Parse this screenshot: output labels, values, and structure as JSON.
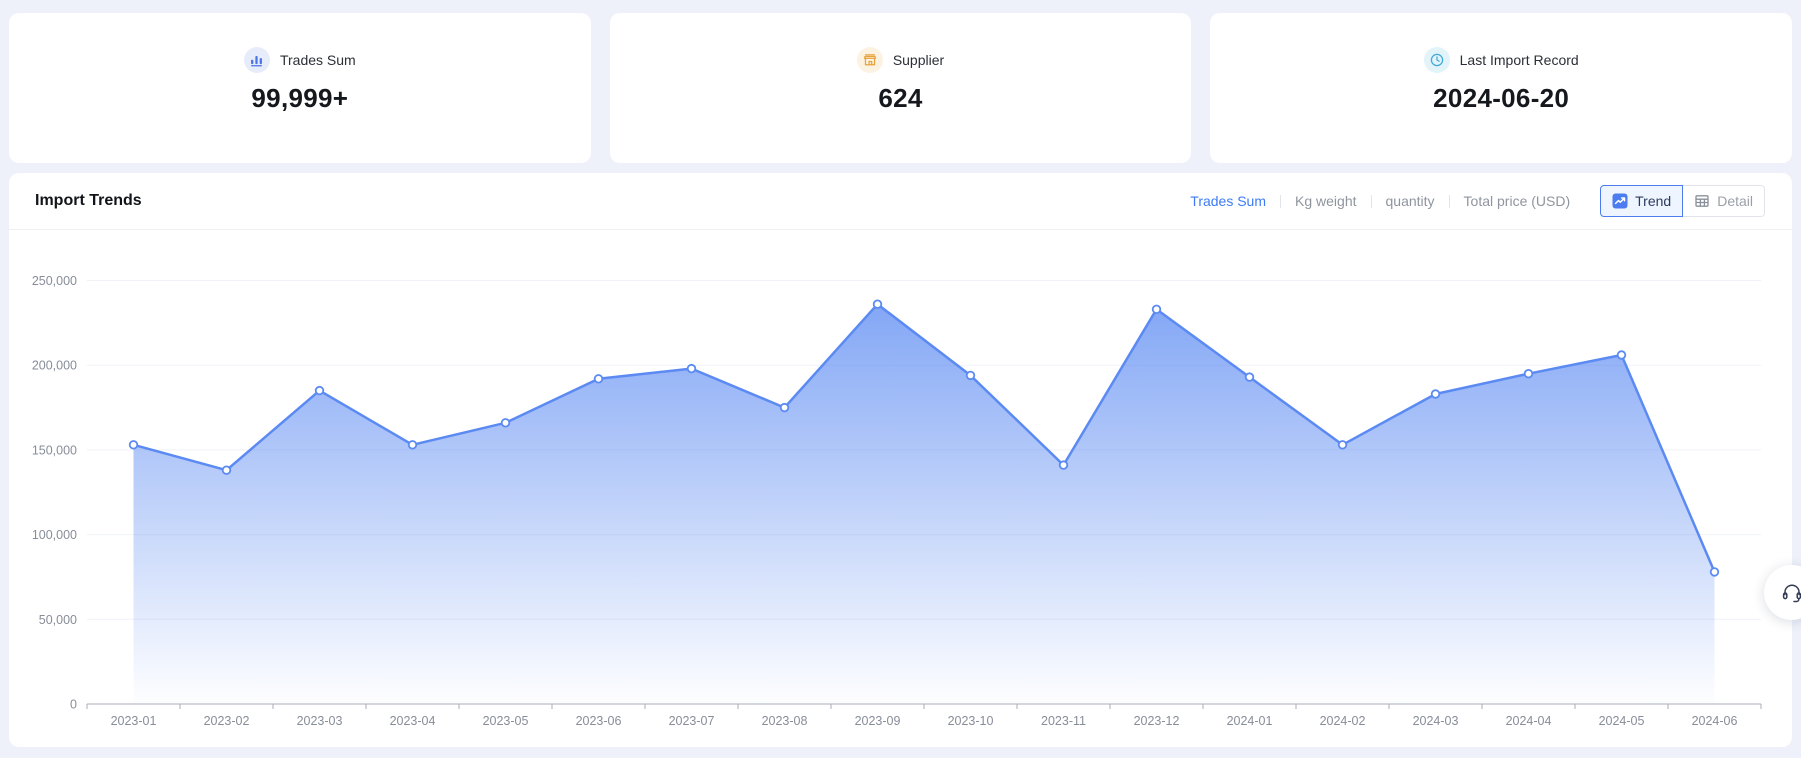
{
  "stats": [
    {
      "label": "Trades Sum",
      "value": "99,999+",
      "icon": "bar-chart-icon",
      "icon_color": "#4a72e8",
      "icon_bg": "#e7ecfb"
    },
    {
      "label": "Supplier",
      "value": "624",
      "icon": "storefront-icon",
      "icon_color": "#e8a23d",
      "icon_bg": "#fcf2e1"
    },
    {
      "label": "Last Import Record",
      "value": "2024-06-20",
      "icon": "clock-icon",
      "icon_color": "#3fa9da",
      "icon_bg": "#e2f3fa"
    }
  ],
  "trends": {
    "title": "Import Trends",
    "metric_tabs": [
      {
        "label": "Trades Sum",
        "active": true
      },
      {
        "label": "Kg weight",
        "active": false
      },
      {
        "label": "quantity",
        "active": false
      },
      {
        "label": "Total price (USD)",
        "active": false
      }
    ],
    "view_toggle": [
      {
        "label": "Trend",
        "active": true,
        "icon": "trend-icon"
      },
      {
        "label": "Detail",
        "active": false,
        "icon": "table-icon"
      }
    ],
    "accent_color": "#3d7bf7"
  },
  "chart_data": {
    "type": "area",
    "title": "Import Trends - Trades Sum",
    "x": [
      "2023-01",
      "2023-02",
      "2023-03",
      "2023-04",
      "2023-05",
      "2023-06",
      "2023-07",
      "2023-08",
      "2023-09",
      "2023-10",
      "2023-11",
      "2023-12",
      "2024-01",
      "2024-02",
      "2024-03",
      "2024-04",
      "2024-05",
      "2024-06"
    ],
    "series": [
      {
        "name": "Trades Sum",
        "values": [
          153000,
          138000,
          185000,
          153000,
          166000,
          192000,
          198000,
          175000,
          236000,
          194000,
          141000,
          233000,
          193000,
          153000,
          183000,
          195000,
          206000,
          78000
        ]
      }
    ],
    "xlabel": "",
    "ylabel": "",
    "ylim": [
      0,
      265000
    ],
    "yticks": [
      0,
      50000,
      100000,
      150000,
      200000,
      250000
    ],
    "grid": true,
    "legend_position": "none",
    "line_color": "#5b8af2",
    "marker": "hollow-circle",
    "area_fill_from": "rgba(91,138,242,0.78)",
    "area_fill_to": "rgba(91,138,242,0.02)"
  },
  "fab": {
    "icon": "headset-icon"
  }
}
